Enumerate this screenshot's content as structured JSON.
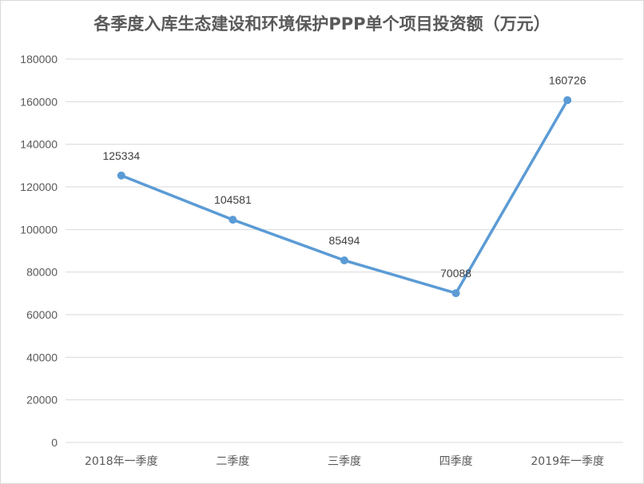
{
  "chart_data": {
    "type": "line",
    "title": "各季度入库生态建设和环境保护PPP单个项目投资额（万元）",
    "categories": [
      "2018年一季度",
      "二季度",
      "三季度",
      "四季度",
      "2019年一季度"
    ],
    "series": [
      {
        "values": [
          125334,
          104581,
          85494,
          70088,
          160726
        ]
      }
    ],
    "data_labels": [
      "125334",
      "104581",
      "85494",
      "70088",
      "160726"
    ],
    "yticks": [
      "0",
      "20000",
      "40000",
      "60000",
      "80000",
      "100000",
      "120000",
      "140000",
      "160000",
      "180000"
    ],
    "ylim": [
      0,
      180000
    ],
    "grid": true,
    "legend": "none",
    "line_color": "#5b9bd5",
    "grid_color": "#d9d9d9"
  }
}
